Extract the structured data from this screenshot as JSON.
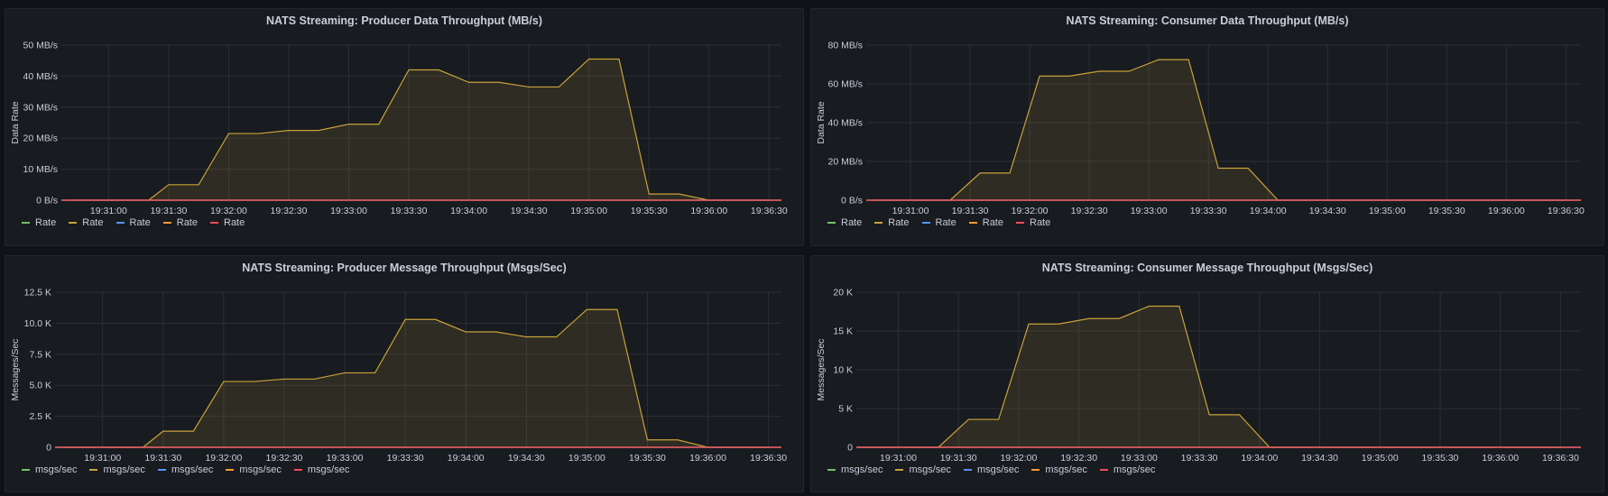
{
  "chart_data": [
    {
      "type": "area",
      "title": "NATS Streaming: Producer Data Throughput (MB/s)",
      "ylabel": "Data Rate",
      "x_ticks": [
        "19:31:00",
        "19:31:30",
        "19:32:00",
        "19:32:30",
        "19:33:00",
        "19:33:30",
        "19:34:00",
        "19:34:30",
        "19:35:00",
        "19:35:30",
        "19:36:00",
        "19:36:30"
      ],
      "y_ticks": [
        "0 B/s",
        "10 MB/s",
        "20 MB/s",
        "30 MB/s",
        "40 MB/s",
        "50 MB/s"
      ],
      "ylim": [
        0,
        50
      ],
      "x_units": "seconds after 19:30:40",
      "series": [
        {
          "name": "Rate",
          "color": "#73bf69",
          "x": [
            0,
            350
          ],
          "y": [
            0,
            0
          ]
        },
        {
          "name": "Rate",
          "color": "#c8a23a",
          "x": [
            0,
            40,
            50,
            65,
            80,
            95,
            110,
            125,
            140,
            155,
            170,
            185,
            200,
            215,
            230,
            245,
            260,
            275,
            290,
            305,
            320,
            335,
            350
          ],
          "y": [
            0,
            0,
            5,
            5,
            21.5,
            21.5,
            22.5,
            22.5,
            24.5,
            24.5,
            42,
            42,
            38,
            38,
            36.5,
            36.5,
            45.5,
            45.5,
            2,
            2,
            0,
            0,
            0
          ]
        },
        {
          "name": "Rate",
          "color": "#5794f2",
          "x": [
            0,
            350
          ],
          "y": [
            0,
            0
          ]
        },
        {
          "name": "Rate",
          "color": "#ff9830",
          "x": [
            0,
            350
          ],
          "y": [
            0,
            0
          ]
        },
        {
          "name": "Rate",
          "color": "#f2495c",
          "x": [
            0,
            350
          ],
          "y": [
            0,
            0
          ]
        }
      ],
      "legend": [
        "Rate",
        "Rate",
        "Rate",
        "Rate",
        "Rate"
      ]
    },
    {
      "type": "area",
      "title": "NATS Streaming: Consumer Data Throughput (MB/s)",
      "ylabel": "Data Rate",
      "x_ticks": [
        "19:31:00",
        "19:31:30",
        "19:32:00",
        "19:32:30",
        "19:33:00",
        "19:33:30",
        "19:34:00",
        "19:34:30",
        "19:35:00",
        "19:35:30",
        "19:36:00",
        "19:36:30"
      ],
      "y_ticks": [
        "0 B/s",
        "20 MB/s",
        "40 MB/s",
        "60 MB/s",
        "80 MB/s"
      ],
      "ylim": [
        0,
        80
      ],
      "x_units": "seconds after 19:30:40",
      "series": [
        {
          "name": "Rate",
          "color": "#73bf69",
          "x": [
            0,
            350
          ],
          "y": [
            0,
            0
          ]
        },
        {
          "name": "Rate",
          "color": "#c8a23a",
          "x": [
            0,
            40,
            55,
            70,
            85,
            100,
            115,
            130,
            145,
            160,
            175,
            190,
            205,
            350
          ],
          "y": [
            0,
            0,
            14,
            14,
            64,
            64,
            66.5,
            66.5,
            72.5,
            72.5,
            16.5,
            16.5,
            0,
            0
          ]
        },
        {
          "name": "Rate",
          "color": "#5794f2",
          "x": [
            0,
            350
          ],
          "y": [
            0,
            0
          ]
        },
        {
          "name": "Rate",
          "color": "#ff9830",
          "x": [
            0,
            350
          ],
          "y": [
            0,
            0
          ]
        },
        {
          "name": "Rate",
          "color": "#f2495c",
          "x": [
            0,
            350
          ],
          "y": [
            0,
            0
          ]
        }
      ],
      "legend": [
        "Rate",
        "Rate",
        "Rate",
        "Rate",
        "Rate"
      ]
    },
    {
      "type": "area",
      "title": "NATS Streaming: Producer Message Throughput (Msgs/Sec)",
      "ylabel": "Messages/Sec",
      "x_ticks": [
        "19:31:00",
        "19:31:30",
        "19:32:00",
        "19:32:30",
        "19:33:00",
        "19:33:30",
        "19:34:00",
        "19:34:30",
        "19:35:00",
        "19:35:30",
        "19:36:00",
        "19:36:30"
      ],
      "y_ticks": [
        "0",
        "2.5 K",
        "5.0 K",
        "7.5 K",
        "10.0 K",
        "12.5 K"
      ],
      "ylim": [
        0,
        12.5
      ],
      "x_units": "seconds after 19:30:40",
      "series": [
        {
          "name": "msgs/sec",
          "color": "#73bf69",
          "x": [
            0,
            350
          ],
          "y": [
            0,
            0
          ]
        },
        {
          "name": "msgs/sec",
          "color": "#c8a23a",
          "x": [
            0,
            40,
            50,
            65,
            80,
            95,
            110,
            125,
            140,
            155,
            170,
            185,
            200,
            215,
            230,
            245,
            260,
            275,
            290,
            305,
            320,
            335,
            350
          ],
          "y": [
            0,
            0,
            1.3,
            1.3,
            5.3,
            5.3,
            5.5,
            5.5,
            6.0,
            6.0,
            10.3,
            10.3,
            9.3,
            9.3,
            8.9,
            8.9,
            11.1,
            11.1,
            0.6,
            0.6,
            0,
            0,
            0
          ]
        },
        {
          "name": "msgs/sec",
          "color": "#5794f2",
          "x": [
            0,
            350
          ],
          "y": [
            0,
            0
          ]
        },
        {
          "name": "msgs/sec",
          "color": "#ff9830",
          "x": [
            0,
            350
          ],
          "y": [
            0,
            0
          ]
        },
        {
          "name": "msgs/sec",
          "color": "#f2495c",
          "x": [
            0,
            350
          ],
          "y": [
            0,
            0
          ]
        }
      ],
      "legend": [
        "msgs/sec",
        "msgs/sec",
        "msgs/sec",
        "msgs/sec",
        "msgs/sec"
      ]
    },
    {
      "type": "area",
      "title": "NATS Streaming: Consumer Message Throughput (Msgs/Sec)",
      "ylabel": "Messages/Sec",
      "x_ticks": [
        "19:31:00",
        "19:31:30",
        "19:32:00",
        "19:32:30",
        "19:33:00",
        "19:33:30",
        "19:34:00",
        "19:34:30",
        "19:35:00",
        "19:35:30",
        "19:36:00",
        "19:36:30"
      ],
      "y_ticks": [
        "0",
        "5 K",
        "10 K",
        "15 K",
        "20 K"
      ],
      "ylim": [
        0,
        20
      ],
      "x_units": "seconds after 19:30:40",
      "series": [
        {
          "name": "msgs/sec",
          "color": "#73bf69",
          "x": [
            0,
            350
          ],
          "y": [
            0,
            0
          ]
        },
        {
          "name": "msgs/sec",
          "color": "#c8a23a",
          "x": [
            0,
            40,
            55,
            70,
            85,
            100,
            115,
            130,
            145,
            160,
            175,
            190,
            205,
            350
          ],
          "y": [
            0,
            0,
            3.6,
            3.6,
            15.9,
            15.9,
            16.6,
            16.6,
            18.2,
            18.2,
            4.2,
            4.2,
            0,
            0
          ]
        },
        {
          "name": "msgs/sec",
          "color": "#5794f2",
          "x": [
            0,
            350
          ],
          "y": [
            0,
            0
          ]
        },
        {
          "name": "msgs/sec",
          "color": "#ff9830",
          "x": [
            0,
            350
          ],
          "y": [
            0,
            0
          ]
        },
        {
          "name": "msgs/sec",
          "color": "#f2495c",
          "x": [
            0,
            350
          ],
          "y": [
            0,
            0
          ]
        }
      ],
      "legend": [
        "msgs/sec",
        "msgs/sec",
        "msgs/sec",
        "msgs/sec",
        "msgs/sec"
      ]
    }
  ]
}
